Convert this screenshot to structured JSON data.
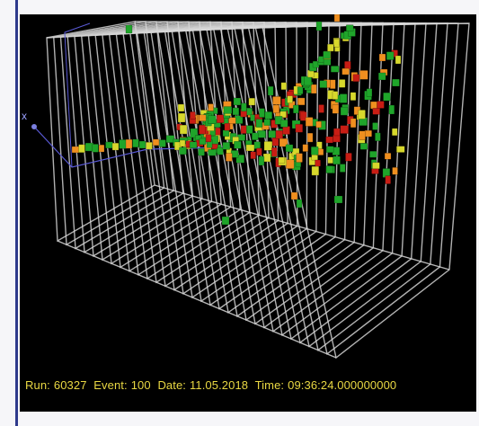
{
  "event_display": {
    "axis_label": "x",
    "info": {
      "run_label": "Run:",
      "run": "60327",
      "event_label": "Event:",
      "event": "100",
      "date_label": "Date:",
      "date": "11.05.2018",
      "time_label": "Time:",
      "time": "09:36:24.000000000"
    },
    "colors": {
      "background": "#000000",
      "grid": "#d8d8d8",
      "axis": "#5a5ad6",
      "info_text": "#e9d843",
      "hit_green": "#1fa52a",
      "hit_yellow": "#d7d82c",
      "hit_orange": "#ef8f1f",
      "hit_red": "#c81d14"
    }
  }
}
